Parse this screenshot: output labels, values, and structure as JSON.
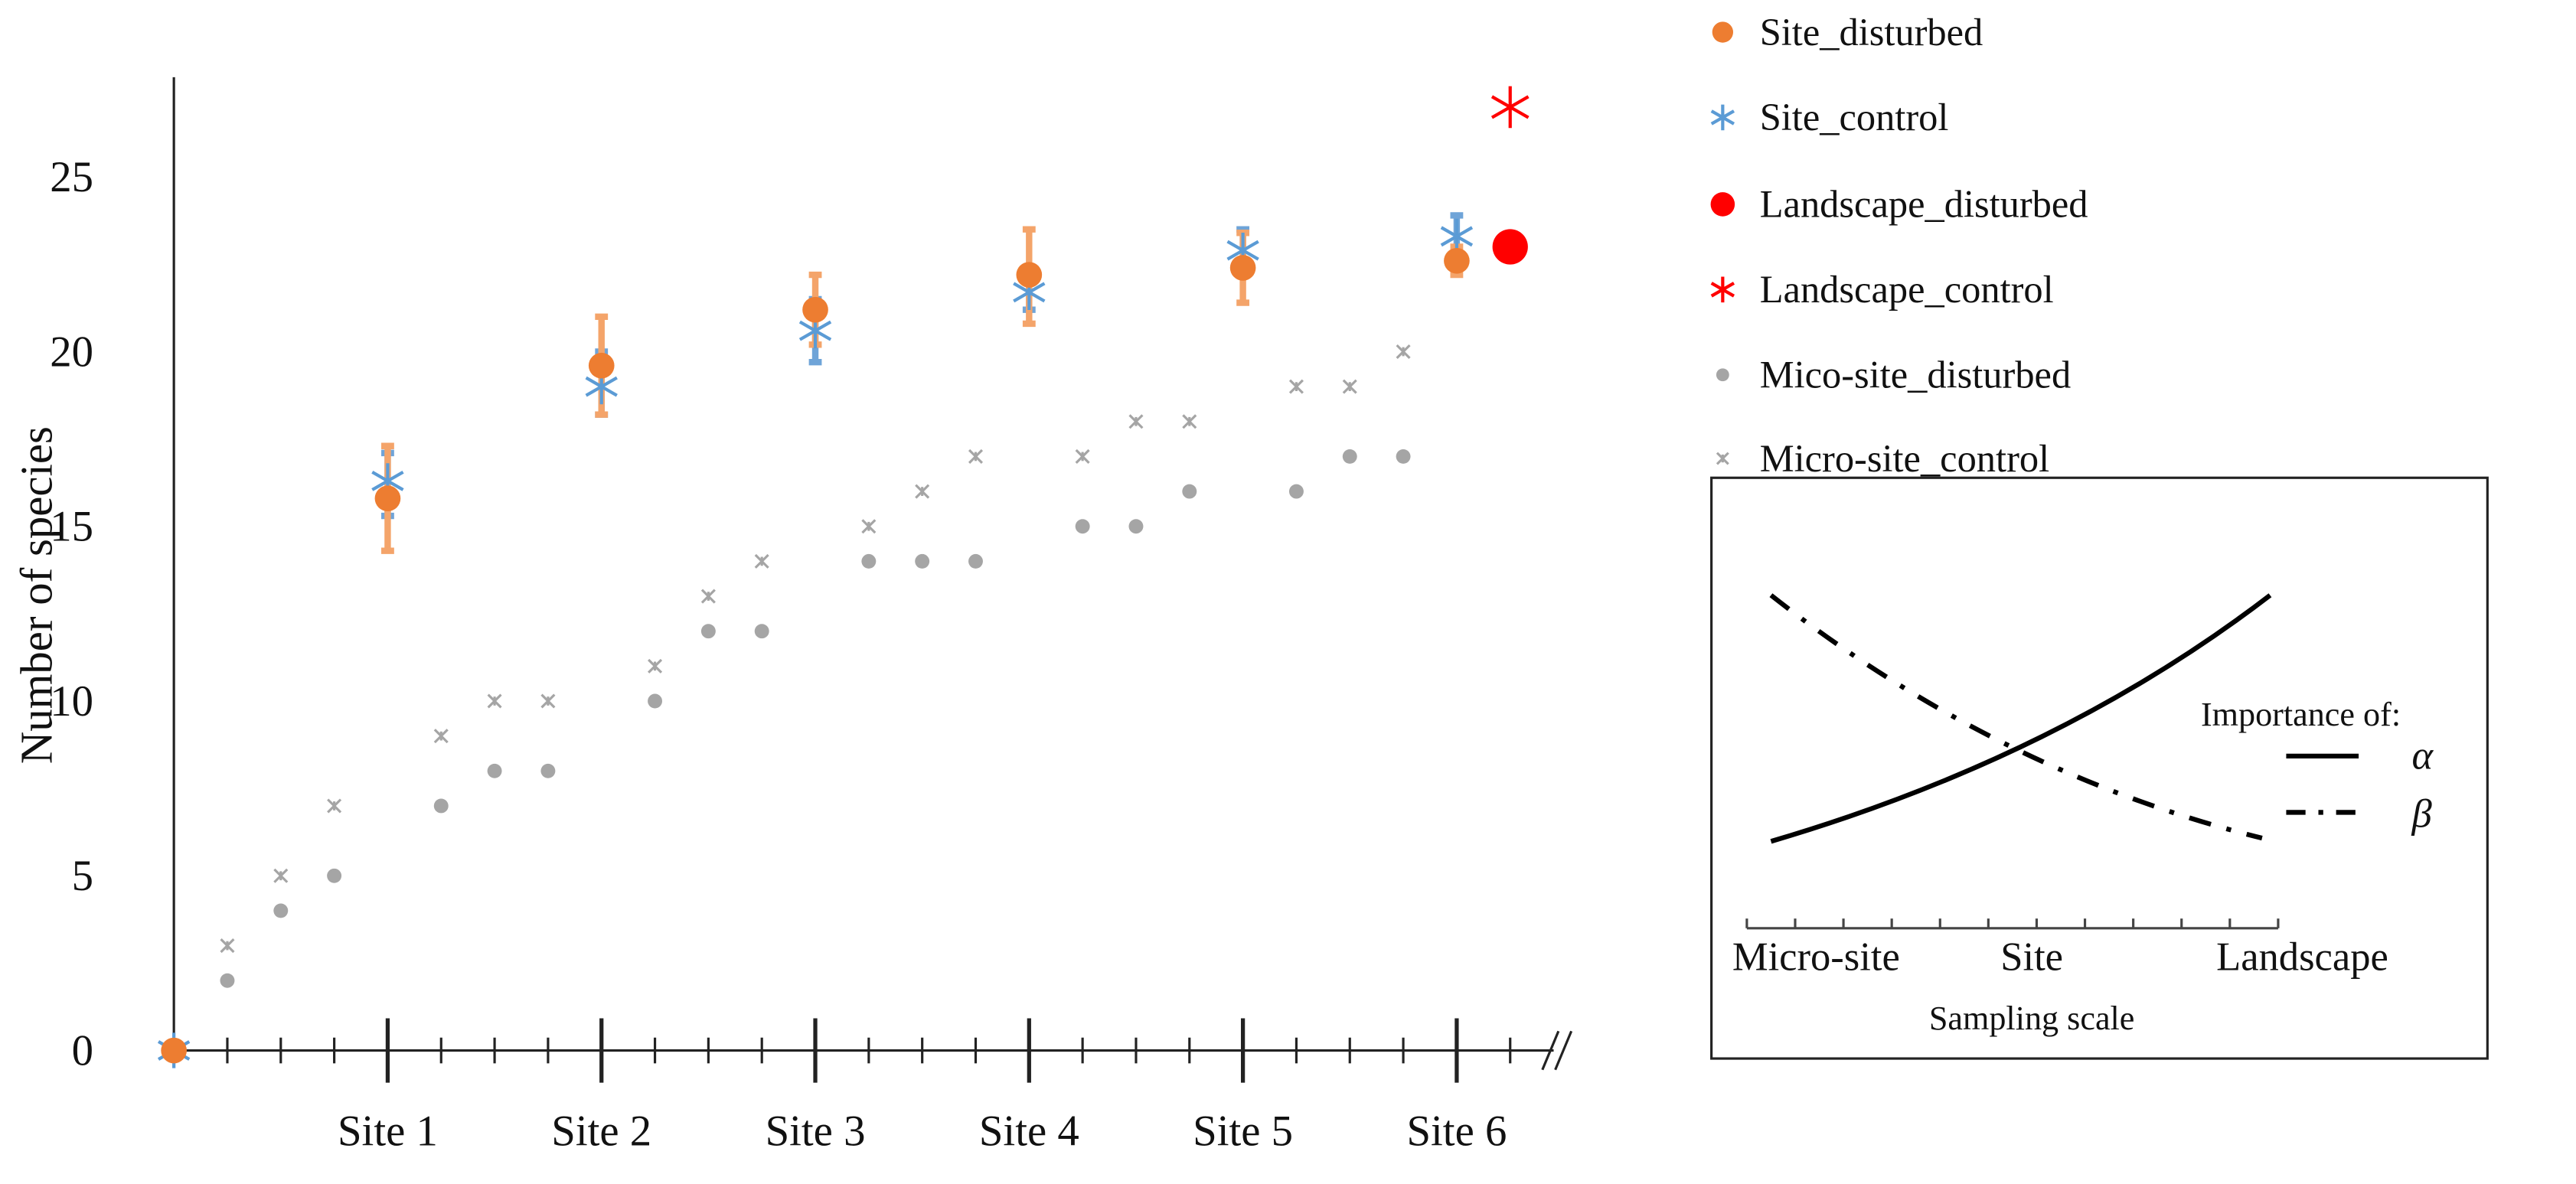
{
  "chart_data": {
    "type": "scatter",
    "ylabel": "Number of species",
    "xlabel": "",
    "ylim": [
      0,
      27
    ],
    "yticks": [
      "0",
      "5",
      "10",
      "15",
      "20",
      "25"
    ],
    "xtick_labels": [
      "Site 1",
      "Site 2",
      "Site 3",
      "Site 4",
      "Site 5",
      "Site 6"
    ],
    "legend_position": "top-right",
    "x_axis_break": true,
    "grid": false,
    "series": [
      {
        "name": "Site_disturbed",
        "color": "#ED7D31",
        "marker": "circle",
        "points": [
          [
            0,
            0,
            0,
            0
          ],
          [
            4,
            15.8,
            14.3,
            17.3
          ],
          [
            8,
            19.6,
            18.2,
            21.0
          ],
          [
            12,
            21.2,
            20.2,
            22.2
          ],
          [
            16,
            22.2,
            20.8,
            23.5
          ],
          [
            20,
            22.4,
            21.4,
            23.4
          ],
          [
            24,
            22.6,
            22.2,
            23.0
          ]
        ]
      },
      {
        "name": "Site_control",
        "color": "#5B9BD5",
        "marker": "asterisk",
        "points": [
          [
            0,
            0,
            0,
            0
          ],
          [
            4,
            16.3,
            15.3,
            17.1
          ],
          [
            8,
            19.0,
            18.2,
            20.0
          ],
          [
            12,
            20.6,
            19.7,
            21.5
          ],
          [
            16,
            21.7,
            21.2,
            22.3
          ],
          [
            20,
            22.9,
            22.4,
            23.5
          ],
          [
            24,
            23.3,
            22.8,
            23.9
          ]
        ]
      },
      {
        "name": "Landscape_disturbed",
        "color": "#FF0000",
        "marker": "circle-large",
        "points": [
          [
            25,
            23.0
          ]
        ]
      },
      {
        "name": "Landscape_control",
        "color": "#FF0000",
        "marker": "asterisk-large",
        "points": [
          [
            25,
            27.0
          ]
        ]
      },
      {
        "name": "Mico-site_disturbed",
        "color": "#A5A5A5",
        "marker": "dot",
        "points": [
          [
            1,
            2
          ],
          [
            2,
            4
          ],
          [
            3,
            5
          ],
          [
            5,
            7
          ],
          [
            6,
            8
          ],
          [
            7,
            8
          ],
          [
            9,
            10
          ],
          [
            10,
            12
          ],
          [
            11,
            12
          ],
          [
            13,
            14
          ],
          [
            14,
            14
          ],
          [
            15,
            14
          ],
          [
            17,
            15
          ],
          [
            18,
            15
          ],
          [
            19,
            16
          ],
          [
            21,
            16
          ],
          [
            22,
            17
          ],
          [
            23,
            17
          ]
        ]
      },
      {
        "name": "Micro-site_control",
        "color": "#A5A5A5",
        "marker": "asterisk-small",
        "points": [
          [
            1,
            3
          ],
          [
            2,
            5
          ],
          [
            3,
            7
          ],
          [
            5,
            9
          ],
          [
            6,
            10
          ],
          [
            7,
            10
          ],
          [
            9,
            11
          ],
          [
            10,
            13
          ],
          [
            11,
            14
          ],
          [
            13,
            15
          ],
          [
            14,
            16
          ],
          [
            15,
            17
          ],
          [
            17,
            17
          ],
          [
            18,
            18
          ],
          [
            19,
            18
          ],
          [
            21,
            19
          ],
          [
            22,
            19
          ],
          [
            23,
            20
          ]
        ]
      }
    ],
    "inset": {
      "xlabel": "Sampling scale",
      "xtick_labels": [
        "Micro-site",
        "Site",
        "Landscape"
      ],
      "legend_title": "Importance of:",
      "lines": [
        {
          "name": "α",
          "style": "solid",
          "trend": "increasing"
        },
        {
          "name": "β",
          "style": "dash-dot",
          "trend": "decreasing"
        }
      ]
    }
  }
}
